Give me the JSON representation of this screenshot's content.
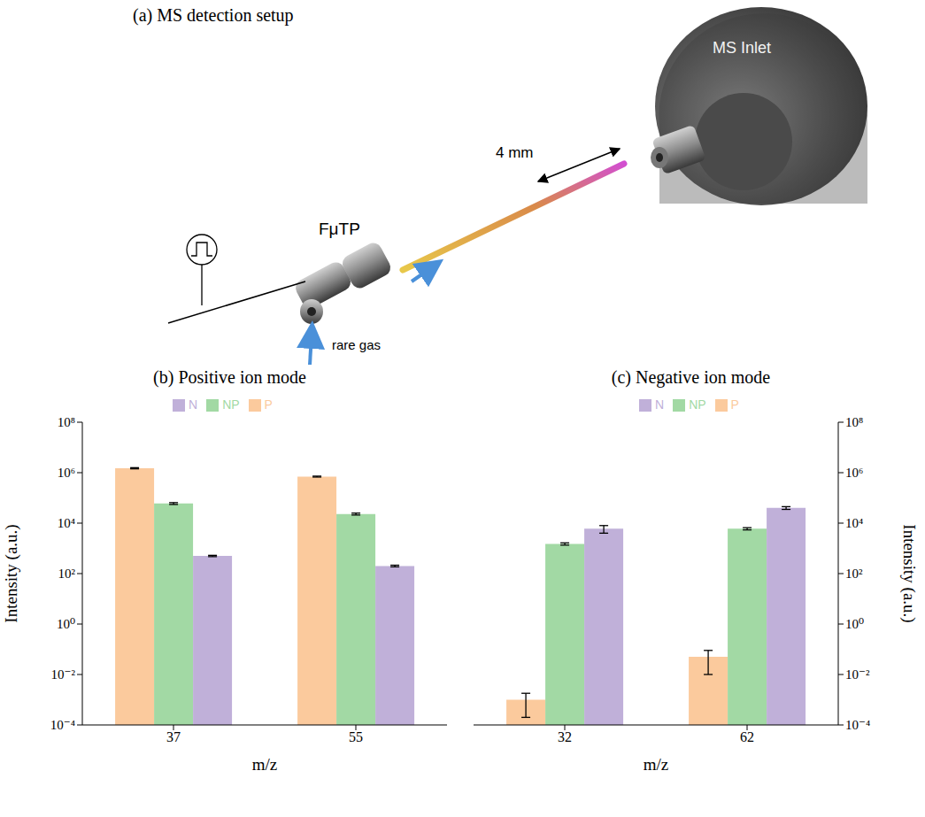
{
  "diagram": {
    "title": "(a) MS detection setup",
    "labels": {
      "inlet": "MS Inlet",
      "distance": "4 mm",
      "source": "FμTP",
      "gas": "rare gas"
    }
  },
  "chart_data": [
    {
      "type": "bar",
      "title": "(b) Positive ion mode",
      "x_label": "m/z",
      "y_label": "Intensity (a.u.)",
      "categories": [
        "37",
        "55"
      ],
      "log": "y",
      "ylim": [
        0.0001,
        100000000
      ],
      "yticks": [
        {
          "value": 0.0001,
          "label": "10⁻⁴"
        },
        {
          "value": 0.01,
          "label": "10⁻²"
        },
        {
          "value": 1,
          "label": "10⁰"
        },
        {
          "value": 100,
          "label": "10²"
        },
        {
          "value": 10000,
          "label": "10⁴"
        },
        {
          "value": 1000000,
          "label": "10⁶"
        },
        {
          "value": 100000000,
          "label": "10⁸"
        }
      ],
      "legend": "top",
      "series": [
        {
          "name": "P",
          "color": "#fbca9d",
          "values": [
            1500000,
            700000
          ],
          "errors": [
            80000,
            30000
          ]
        },
        {
          "name": "NP",
          "color": "#a2d9a4",
          "values": [
            60000,
            23000
          ],
          "errors": [
            5000,
            2000
          ]
        },
        {
          "name": "N",
          "color": "#c0b0d9",
          "values": [
            500,
            200
          ],
          "errors": [
            30,
            15
          ]
        }
      ]
    },
    {
      "type": "bar",
      "title": "(c) Negative ion mode",
      "x_label": "m/z",
      "y_label": "Intensity (a.u.)",
      "categories": [
        "32",
        "62"
      ],
      "log": "y",
      "ylim": [
        0.0001,
        100000000
      ],
      "yticks": [
        {
          "value": 0.0001,
          "label": "10⁻⁴"
        },
        {
          "value": 0.01,
          "label": "10⁻²"
        },
        {
          "value": 1,
          "label": "10⁰"
        },
        {
          "value": 100,
          "label": "10²"
        },
        {
          "value": 10000,
          "label": "10⁴"
        },
        {
          "value": 1000000,
          "label": "10⁶"
        },
        {
          "value": 100000000,
          "label": "10⁸"
        }
      ],
      "legend": "top",
      "series": [
        {
          "name": "P",
          "color": "#fbca9d",
          "values": [
            0.001,
            0.05
          ],
          "errors": [
            0.0008,
            0.04
          ]
        },
        {
          "name": "NP",
          "color": "#a2d9a4",
          "values": [
            1500,
            6000
          ],
          "errors": [
            150,
            600
          ]
        },
        {
          "name": "N",
          "color": "#c0b0d9",
          "values": [
            6000,
            40000
          ],
          "errors": [
            2000,
            5000
          ]
        }
      ]
    }
  ]
}
